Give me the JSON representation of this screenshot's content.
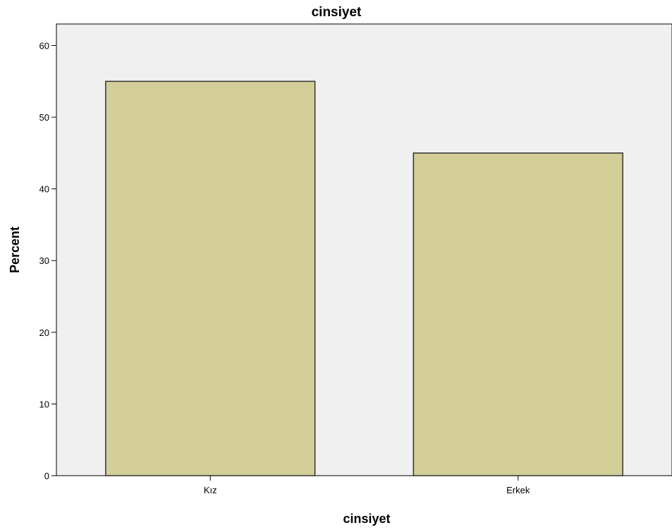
{
  "chart_data": {
    "type": "bar",
    "title": "cinsiyet",
    "xlabel": "cinsiyet",
    "ylabel": "Percent",
    "categories": [
      "Kız",
      "Erkek"
    ],
    "values": [
      55,
      45
    ],
    "ylim": [
      0,
      63
    ],
    "yticks": [
      0,
      10,
      20,
      30,
      40,
      50,
      60
    ],
    "grid": false,
    "bar_color": "#d3cd98",
    "bar_edge_color": "#333333",
    "plot_background": "#f0f0f0"
  }
}
